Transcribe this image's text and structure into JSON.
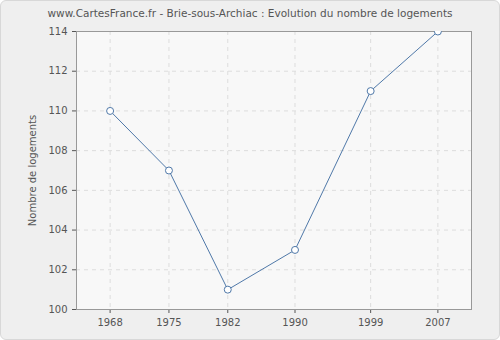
{
  "chart_data": {
    "type": "line",
    "title": "www.CartesFrance.fr - Brie-sous-Archiac : Evolution du nombre de logements",
    "y_label": "Nombre de logements",
    "x": [
      1968,
      1975,
      1982,
      1990,
      1999,
      2007
    ],
    "values": [
      110,
      107,
      101,
      103,
      111,
      114
    ],
    "color": "#4f78a8",
    "marker": "circle",
    "xlim": [
      1964,
      2011
    ],
    "xticks": [
      1968,
      1975,
      1982,
      1990,
      1999,
      2007
    ],
    "ylim": [
      100,
      114
    ],
    "yticks": [
      100,
      102,
      104,
      106,
      108,
      110,
      112,
      114
    ],
    "grid": true
  }
}
